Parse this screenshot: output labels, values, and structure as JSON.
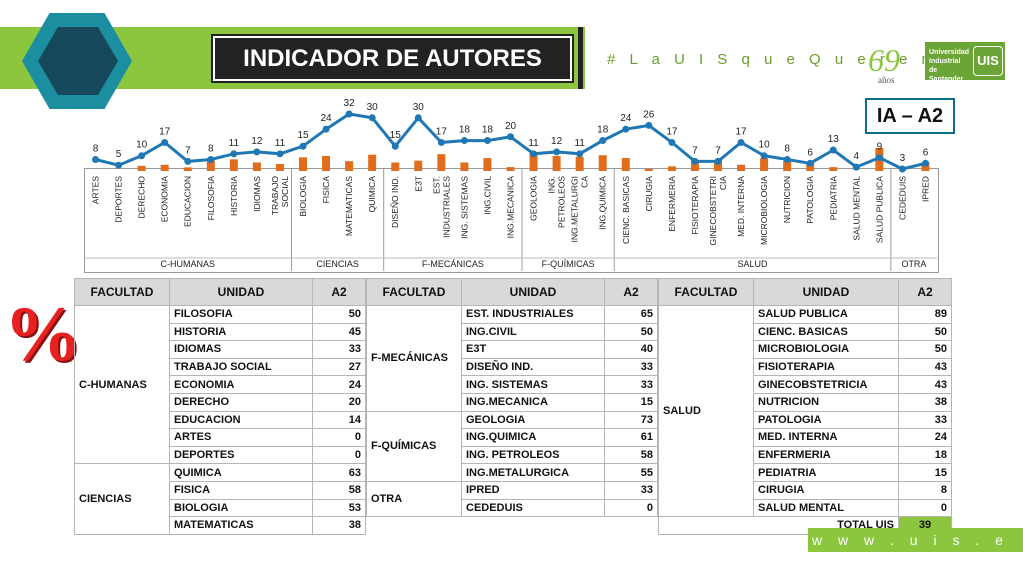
{
  "header": {
    "title": "INDICADOR DE AUTORES",
    "hashtag": "# L a U I S q u e Q u e r e m o s",
    "logo_number": "69",
    "logo_sub": "años",
    "university": "Universidad Industrial de Santander",
    "uis": "UIS",
    "indicator": "IA – A2",
    "percent_symbol": "%",
    "website": "w w w . u i s . e d u . c o"
  },
  "chart_data": {
    "type": "line",
    "categories": [
      "ARTES",
      "DEPORTES",
      "DERECHO",
      "ECONOMIA",
      "EDUCACION",
      "FILOSOFIA",
      "HISTORIA",
      "IDIOMAS",
      "TRABAJO SOCIAL",
      "BIOLOGIA",
      "FISICA",
      "MATEMATICAS",
      "QUIMICA",
      "DISEÑO IND.",
      "E3T",
      "EST. INDUSTRIALES",
      "ING. SISTEMAS",
      "ING.CIVIL",
      "ING.MECANICA",
      "GEOLOGIA",
      "ING. PETROLEOS",
      "ING.METALURGICA",
      "ING.QUIMICA",
      "CIENC. BASICAS",
      "CIRUGIA",
      "ENFERMERIA",
      "FISIOTERAPIA",
      "GINECOBSTETRICIA",
      "MED. INTERNA",
      "MICROBIOLOGIA",
      "NUTRICION",
      "PATOLOGIA",
      "PEDIATRIA",
      "SALUD MENTAL",
      "SALUD PUBLICA",
      "CEDEDUIS",
      "IPRED"
    ],
    "category_labels": [
      "ARTES",
      "DEPORTES",
      "DERECHO",
      "ECONOMIA",
      "EDUCACION",
      "FILOSOFIA",
      "HISTORIA",
      "IDIOMAS",
      "TRABAJO|SOCIAL",
      "BIOLOGIA",
      "FISICA",
      "MATEMATICAS",
      "QUIMICA",
      "DISEÑO IND.",
      "E3T",
      "EST.|INDUSTRIALES",
      "ING. SISTEMAS",
      "ING.CIVIL",
      "ING.MECANICA",
      "GEOLOGIA",
      "ING.|PETROLEOS",
      "ING.METALURGI|CA",
      "ING.QUIMICA",
      "CIENC. BASICAS",
      "CIRUGIA",
      "ENFERMERIA",
      "FISIOTERAPIA",
      "GINECOBSTETRI|CIA",
      "MED. INTERNA",
      "MICROBIOLOGIA",
      "NUTRICION",
      "PATOLOGIA",
      "PEDIATRIA",
      "SALUD MENTAL",
      "SALUD PUBLICA",
      "CEDEDUIS",
      "IPRED"
    ],
    "series": [
      {
        "values": [
          8,
          5,
          10,
          17,
          7,
          8,
          11,
          12,
          11,
          15,
          24,
          32,
          30,
          15,
          30,
          17,
          18,
          18,
          20,
          11,
          12,
          11,
          18,
          24,
          26,
          17,
          7,
          7,
          17,
          10,
          8,
          6,
          13,
          4,
          9,
          3,
          6
        ]
      }
    ],
    "bar_values": [
      0,
      0,
      20,
      24,
      14,
      50,
      45,
      33,
      27,
      53,
      58,
      38,
      63,
      33,
      40,
      65,
      33,
      50,
      15,
      73,
      58,
      55,
      61,
      50,
      8,
      18,
      43,
      43,
      24,
      50,
      38,
      33,
      15,
      0,
      89,
      0,
      33
    ],
    "groups": [
      {
        "name": "C-HUMANAS",
        "count": 9
      },
      {
        "name": "CIENCIAS",
        "count": 4
      },
      {
        "name": "F-MECÁNICAS",
        "count": 6
      },
      {
        "name": "F-QUÍMICAS",
        "count": 4
      },
      {
        "name": "SALUD",
        "count": 12
      },
      {
        "name": "OTRA",
        "count": 2
      }
    ],
    "colors": {
      "line": "#1f77b4",
      "bar": "#e06c1c"
    }
  },
  "table": {
    "headers": [
      "FACULTAD",
      "UNIDAD",
      "A2"
    ],
    "total_label": "TOTAL UIS",
    "total_value": "39",
    "left": [
      {
        "faculty": "C-HUMANAS",
        "rows": [
          [
            "FILOSOFIA",
            "50"
          ],
          [
            "HISTORIA",
            "45"
          ],
          [
            "IDIOMAS",
            "33"
          ],
          [
            "TRABAJO SOCIAL",
            "27"
          ],
          [
            "ECONOMIA",
            "24"
          ],
          [
            "DERECHO",
            "20"
          ],
          [
            "EDUCACION",
            "14"
          ],
          [
            "ARTES",
            "0"
          ],
          [
            "DEPORTES",
            "0"
          ]
        ]
      },
      {
        "faculty": "CIENCIAS",
        "rows": [
          [
            "QUIMICA",
            "63"
          ],
          [
            "FISICA",
            "58"
          ],
          [
            "BIOLOGIA",
            "53"
          ],
          [
            "MATEMATICAS",
            "38"
          ]
        ]
      }
    ],
    "middle": [
      {
        "faculty": "F-MECÁNICAS",
        "rows": [
          [
            "EST. INDUSTRIALES",
            "65"
          ],
          [
            "ING.CIVIL",
            "50"
          ],
          [
            "E3T",
            "40"
          ],
          [
            "DISEÑO IND.",
            "33"
          ],
          [
            "ING. SISTEMAS",
            "33"
          ],
          [
            "ING.MECANICA",
            "15"
          ]
        ]
      },
      {
        "faculty": "F-QUÍMICAS",
        "rows": [
          [
            "GEOLOGIA",
            "73"
          ],
          [
            "ING.QUIMICA",
            "61"
          ],
          [
            "ING. PETROLEOS",
            "58"
          ],
          [
            "ING.METALURGICA",
            "55"
          ]
        ]
      },
      {
        "faculty": "OTRA",
        "rows": [
          [
            "IPRED",
            "33"
          ],
          [
            "CEDEDUIS",
            "0"
          ]
        ]
      }
    ],
    "right": [
      {
        "faculty": "SALUD",
        "rows": [
          [
            "SALUD PUBLICA",
            "89"
          ],
          [
            "CIENC. BASICAS",
            "50"
          ],
          [
            "MICROBIOLOGIA",
            "50"
          ],
          [
            "FISIOTERAPIA",
            "43"
          ],
          [
            "GINECOBSTETRICIA",
            "43"
          ],
          [
            "NUTRICION",
            "38"
          ],
          [
            "PATOLOGIA",
            "33"
          ],
          [
            "MED. INTERNA",
            "24"
          ],
          [
            "ENFERMERIA",
            "18"
          ],
          [
            "PEDIATRIA",
            "15"
          ],
          [
            "CIRUGIA",
            "8"
          ],
          [
            "SALUD MENTAL",
            "0"
          ]
        ]
      }
    ]
  }
}
